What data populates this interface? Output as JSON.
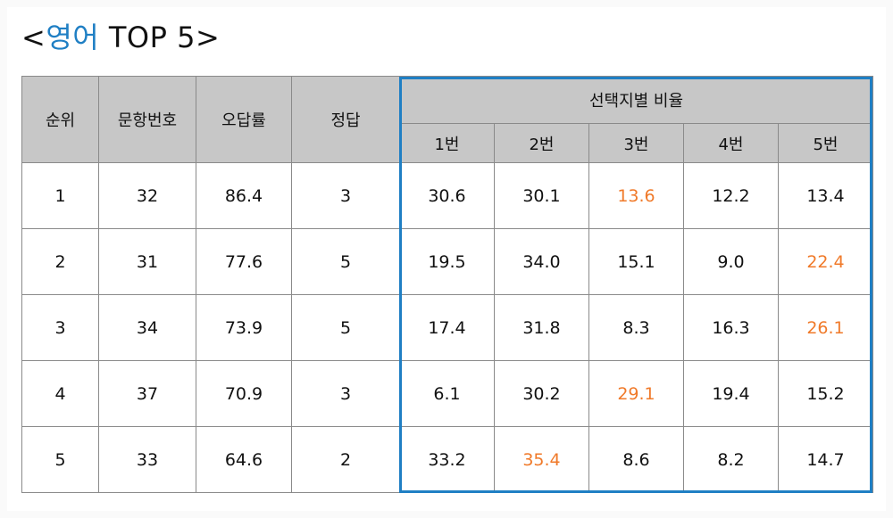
{
  "title": {
    "prefix": "<",
    "highlight": "영어",
    "suffix": " TOP 5>"
  },
  "colors": {
    "accent": "#1f7fc4",
    "highlight_value": "#f07a2a",
    "header_bg": "#c7c7c7"
  },
  "headers": {
    "rank": "순위",
    "question": "문항번호",
    "error_rate": "오답률",
    "answer": "정답",
    "choice_group": "선택지별 비율",
    "choices": [
      "1번",
      "2번",
      "3번",
      "4번",
      "5번"
    ]
  },
  "rows": [
    {
      "rank": "1",
      "question": "32",
      "error_rate": "86.4",
      "answer": "3",
      "choices": [
        "30.6",
        "30.1",
        "13.6",
        "12.2",
        "13.4"
      ],
      "highlight_index": 2
    },
    {
      "rank": "2",
      "question": "31",
      "error_rate": "77.6",
      "answer": "5",
      "choices": [
        "19.5",
        "34.0",
        "15.1",
        "9.0",
        "22.4"
      ],
      "highlight_index": 4
    },
    {
      "rank": "3",
      "question": "34",
      "error_rate": "73.9",
      "answer": "5",
      "choices": [
        "17.4",
        "31.8",
        "8.3",
        "16.3",
        "26.1"
      ],
      "highlight_index": 4
    },
    {
      "rank": "4",
      "question": "37",
      "error_rate": "70.9",
      "answer": "3",
      "choices": [
        "6.1",
        "30.2",
        "29.1",
        "19.4",
        "15.2"
      ],
      "highlight_index": 2
    },
    {
      "rank": "5",
      "question": "33",
      "error_rate": "64.6",
      "answer": "2",
      "choices": [
        "33.2",
        "35.4",
        "8.6",
        "8.2",
        "14.7"
      ],
      "highlight_index": 1
    }
  ]
}
